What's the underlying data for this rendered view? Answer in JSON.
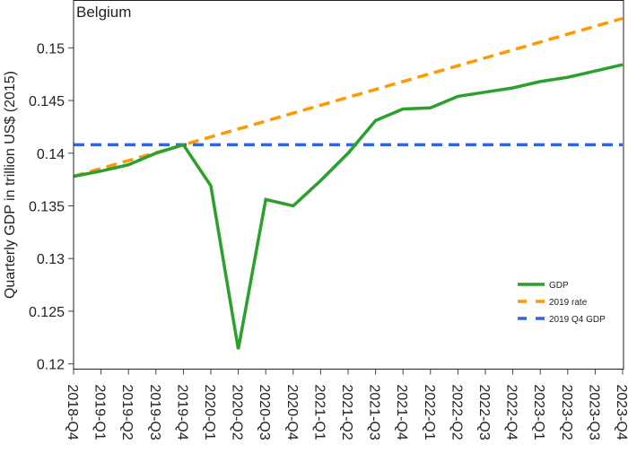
{
  "chart_data": {
    "type": "line",
    "title": "Belgium",
    "xlabel": "",
    "ylabel": "Quarterly GDP in trillion US$ (2015)",
    "categories": [
      "2018-Q4",
      "2019-Q1",
      "2019-Q2",
      "2019-Q3",
      "2019-Q4",
      "2020-Q1",
      "2020-Q2",
      "2020-Q3",
      "2020-Q4",
      "2021-Q1",
      "2021-Q2",
      "2021-Q3",
      "2021-Q4",
      "2022-Q1",
      "2022-Q2",
      "2022-Q3",
      "2022-Q4",
      "2023-Q1",
      "2023-Q2",
      "2023-Q3",
      "2023-Q4"
    ],
    "ylim": [
      0.1195,
      0.1545
    ],
    "yticks": [
      0.12,
      0.125,
      0.13,
      0.135,
      0.14,
      0.145,
      0.15
    ],
    "ytick_labels": [
      "0.12",
      "0.125",
      "0.13",
      "0.135",
      "0.14",
      "0.145",
      "0.15"
    ],
    "grid": false,
    "legend_position": "bottom-right",
    "series": [
      {
        "name": "GDP",
        "color": "#2ca02c",
        "dash": "solid",
        "values": [
          0.1378,
          0.1383,
          0.1389,
          0.14,
          0.1408,
          0.1369,
          0.1214,
          0.1356,
          0.135,
          0.1374,
          0.14,
          0.1431,
          0.1442,
          0.1443,
          0.1454,
          0.1458,
          0.1462,
          0.1468,
          0.1472,
          0.1478,
          0.1484
        ]
      },
      {
        "name": "2019 rate",
        "color": "#ff9900",
        "dash": "dashed",
        "values": [
          0.1378,
          0.13855,
          0.1393,
          0.14005,
          0.1408,
          0.14155,
          0.1423,
          0.14305,
          0.1438,
          0.14455,
          0.1453,
          0.14605,
          0.1468,
          0.14755,
          0.1483,
          0.14905,
          0.1498,
          0.15055,
          0.1513,
          0.15205,
          0.1528
        ]
      },
      {
        "name": "2019 Q4 GDP",
        "color": "#3366dd",
        "dash": "dashed",
        "values": [
          0.1408,
          0.1408,
          0.1408,
          0.1408,
          0.1408,
          0.1408,
          0.1408,
          0.1408,
          0.1408,
          0.1408,
          0.1408,
          0.1408,
          0.1408,
          0.1408,
          0.1408,
          0.1408,
          0.1408,
          0.1408,
          0.1408,
          0.1408,
          0.1408
        ]
      }
    ]
  }
}
